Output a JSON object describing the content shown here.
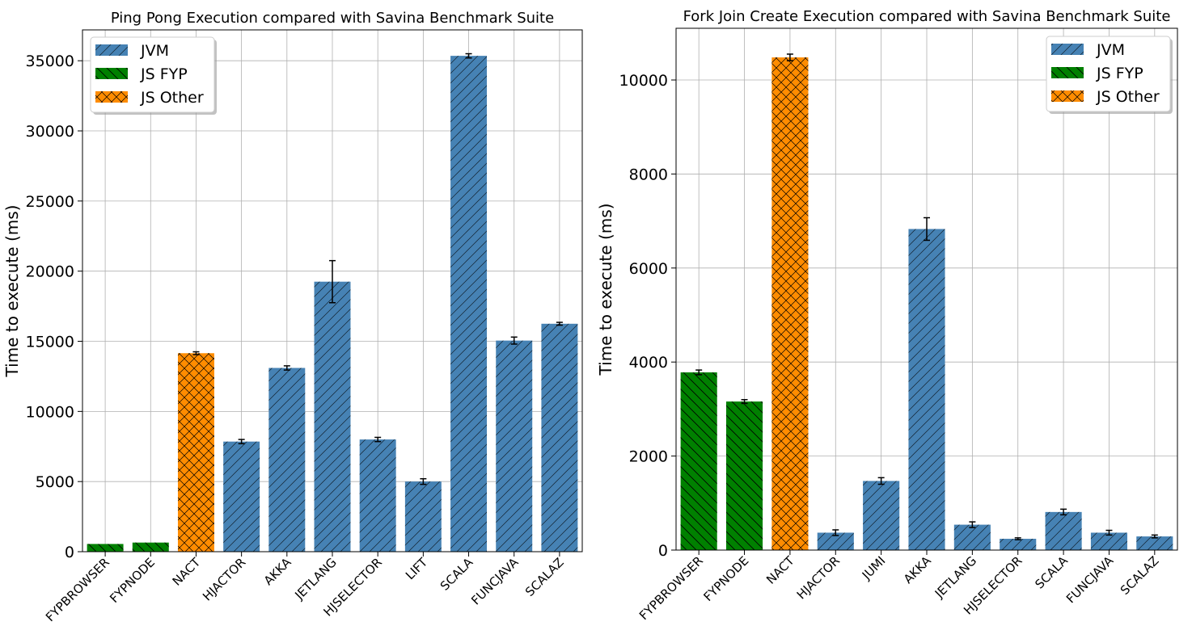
{
  "colors": {
    "JVM": "#4682b4",
    "JS FYP": "#008000",
    "JS Other": "#ff8c00",
    "grid": "#b0b0b0",
    "errorbar": "#000000"
  },
  "chart_data": [
    {
      "type": "bar",
      "title": "Ping Pong Execution compared with Savina Benchmark Suite",
      "xlabel": "",
      "ylabel": "Time to execute (ms)",
      "ylim": [
        0,
        37200
      ],
      "yticks": [
        0,
        5000,
        10000,
        15000,
        20000,
        25000,
        30000,
        35000
      ],
      "grid": true,
      "legend_position": "top-left",
      "legend": [
        "JVM",
        "JS FYP",
        "JS Other"
      ],
      "categories": [
        "FYPBROWSER",
        "FYPNODE",
        "NACT",
        "HJACTOR",
        "AKKA",
        "JETLANG",
        "HJSELECTOR",
        "LIFT",
        "SCALA",
        "FUNCJAVA",
        "SCALAZ"
      ],
      "groups": [
        "JS FYP",
        "JS FYP",
        "JS Other",
        "JVM",
        "JVM",
        "JVM",
        "JVM",
        "JVM",
        "JVM",
        "JVM",
        "JVM"
      ],
      "values": [
        550,
        650,
        14150,
        7850,
        13100,
        19250,
        8000,
        5000,
        35350,
        15050,
        16250
      ],
      "errors": [
        0,
        0,
        100,
        150,
        150,
        1500,
        150,
        200,
        150,
        250,
        100
      ]
    },
    {
      "type": "bar",
      "title": "Fork Join Create Execution compared with Savina Benchmark Suite",
      "xlabel": "",
      "ylabel": "Time to execute (ms)",
      "ylim": [
        0,
        11100
      ],
      "yticks": [
        0,
        2000,
        4000,
        6000,
        8000,
        10000
      ],
      "grid": true,
      "legend_position": "top-right",
      "legend": [
        "JVM",
        "JS FYP",
        "JS Other"
      ],
      "categories": [
        "FYPBROWSER",
        "FYPNODE",
        "NACT",
        "HJACTOR",
        "JUMI",
        "AKKA",
        "JETLANG",
        "HJSELECTOR",
        "SCALA",
        "FUNCJAVA",
        "SCALAZ"
      ],
      "groups": [
        "JS FYP",
        "JS FYP",
        "JS Other",
        "JVM",
        "JVM",
        "JVM",
        "JVM",
        "JVM",
        "JVM",
        "JVM",
        "JVM"
      ],
      "values": [
        3780,
        3160,
        10480,
        370,
        1470,
        6830,
        540,
        240,
        810,
        370,
        290
      ],
      "errors": [
        50,
        40,
        70,
        60,
        70,
        240,
        60,
        20,
        60,
        50,
        30
      ]
    }
  ]
}
